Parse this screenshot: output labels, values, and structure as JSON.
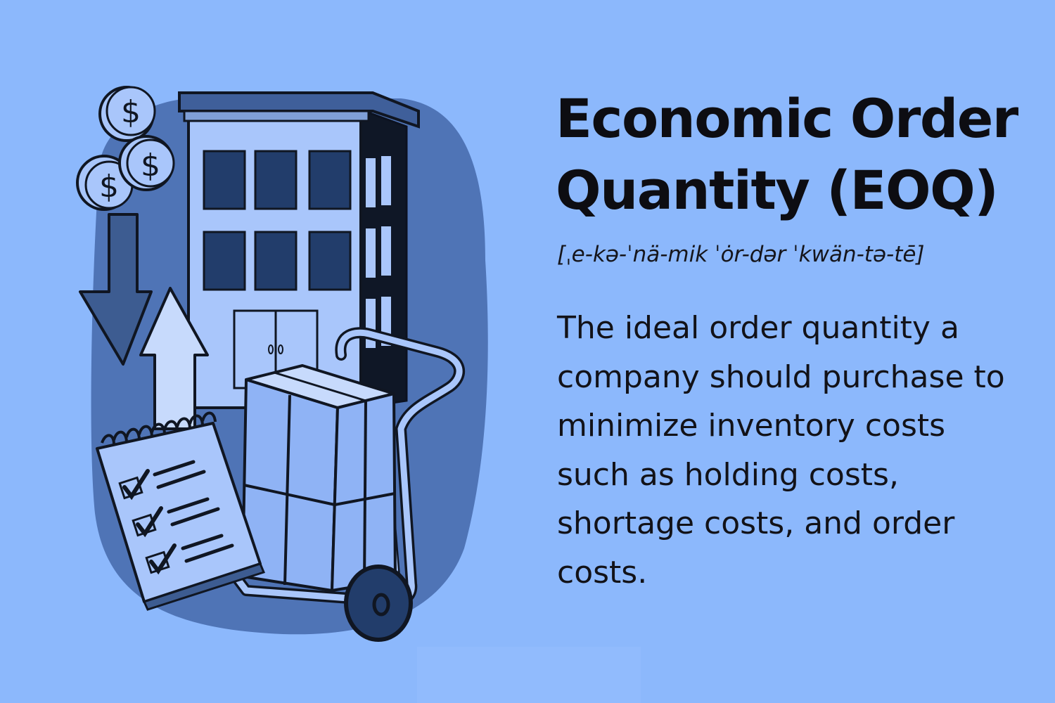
{
  "title": {
    "line1": "Economic Order",
    "line2": "Quantity (EOQ)"
  },
  "pronunciation": "[ˌe-kə-ˈnä-mik ˈȯr-dər ˈkwän-tə-tē]",
  "definition": "The ideal order quantity a company should purchase to minimize inventory costs such as holding costs, shortage costs, and order costs.",
  "illustration": {
    "coin_symbol": "$",
    "colors": {
      "background": "#8cb8fc",
      "blob": "#4f74b6",
      "building": "#a9c6fb",
      "window": "#223d6b",
      "outline": "#101622"
    }
  }
}
